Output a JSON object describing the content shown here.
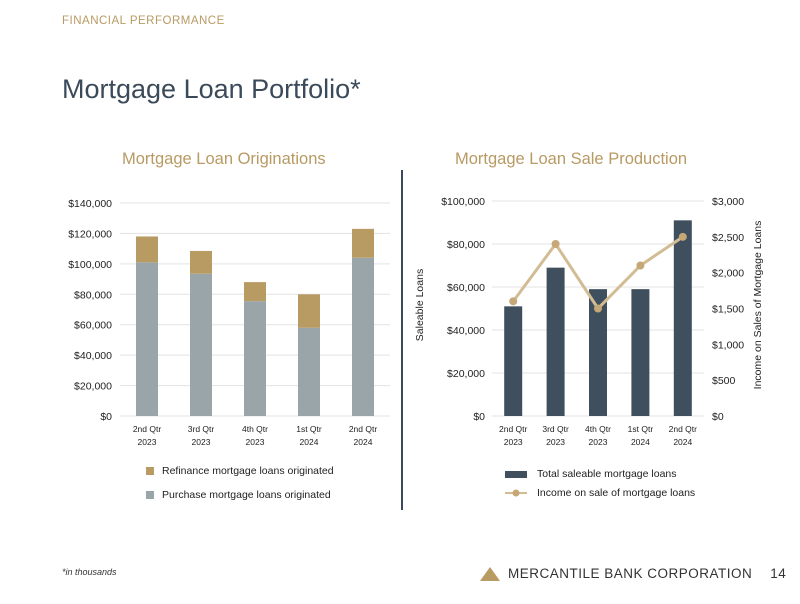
{
  "header": {
    "section": "FINANCIAL PERFORMANCE",
    "title": "Mortgage Loan Portfolio*"
  },
  "footer": {
    "note": "*in thousands",
    "company": "MERCANTILE BANK CORPORATION",
    "page": "14"
  },
  "colors": {
    "refi": "#b89a63",
    "purchase": "#9aa5aa",
    "saleable": "#3f4f5e",
    "income": "#d2bc94"
  },
  "chart_data": [
    {
      "type": "bar",
      "stacked": true,
      "title": "Mortgage Loan Originations",
      "categories": [
        [
          "2nd Qtr",
          "2023"
        ],
        [
          "3rd Qtr",
          "2023"
        ],
        [
          "4th Qtr",
          "2023"
        ],
        [
          "1st Qtr",
          "2024"
        ],
        [
          "2nd Qtr",
          "2024"
        ]
      ],
      "series": [
        {
          "name": "Purchase mortgage loans originated",
          "values": [
            101000,
            93500,
            75500,
            58000,
            104000
          ]
        },
        {
          "name": "Refinance mortgage loans originated",
          "values": [
            17000,
            15000,
            12500,
            22000,
            19000
          ]
        }
      ],
      "ylim": [
        0,
        140000
      ],
      "yticks": [
        "$0",
        "$20,000",
        "$40,000",
        "$60,000",
        "$80,000",
        "$100,000",
        "$120,000",
        "$140,000"
      ],
      "legend": [
        "Refinance mortgage loans originated",
        "Purchase mortgage loans originated"
      ],
      "grid": true
    },
    {
      "type": "bar+line",
      "title": "Mortgage Loan Sale Production",
      "categories": [
        [
          "2nd Qtr",
          "2023"
        ],
        [
          "3rd Qtr",
          "2023"
        ],
        [
          "4th Qtr",
          "2023"
        ],
        [
          "1st Qtr",
          "2024"
        ],
        [
          "2nd Qtr",
          "2024"
        ]
      ],
      "series": [
        {
          "name": "Total saleable mortgage loans",
          "axis": "left",
          "values": [
            51000,
            69000,
            59000,
            59000,
            91000
          ]
        },
        {
          "name": "Income on sale of mortgage loans",
          "axis": "right",
          "values": [
            1600,
            2400,
            1500,
            2100,
            2500
          ]
        }
      ],
      "ylabel": "Saleable Loans",
      "y2label": "Income on Sales of Mortgage Loans",
      "ylim": [
        0,
        100000
      ],
      "y2lim": [
        0,
        3000
      ],
      "yticks": [
        "$0",
        "$20,000",
        "$40,000",
        "$60,000",
        "$80,000",
        "$100,000"
      ],
      "y2ticks": [
        "$0",
        "$500",
        "$1,000",
        "$1,500",
        "$2,000",
        "$2,500",
        "$3,000"
      ],
      "grid": true
    }
  ]
}
